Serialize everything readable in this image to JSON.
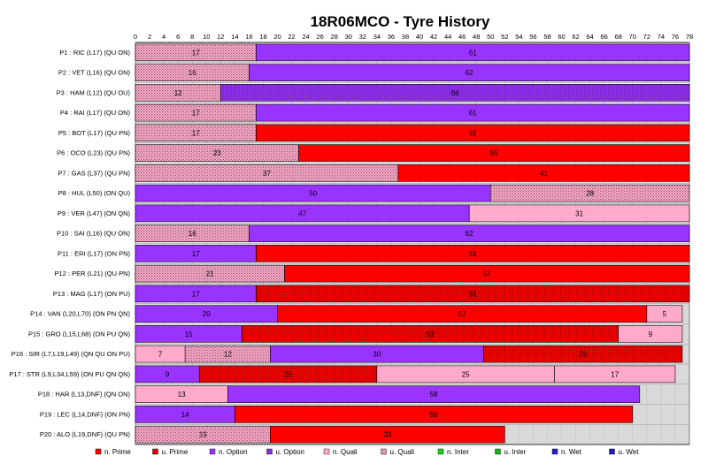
{
  "chart_data": {
    "type": "bar",
    "orientation": "horizontal-stacked",
    "title": "18R06MCO - Tyre History",
    "xlim": [
      0,
      78
    ],
    "x_ticks": [
      0,
      2,
      4,
      6,
      8,
      10,
      12,
      14,
      16,
      18,
      20,
      22,
      24,
      26,
      28,
      30,
      32,
      34,
      36,
      38,
      40,
      42,
      44,
      46,
      48,
      50,
      52,
      54,
      56,
      58,
      60,
      62,
      64,
      66,
      68,
      70,
      72,
      74,
      76,
      78
    ],
    "grid": true,
    "legend_position": "bottom",
    "compounds": [
      {
        "key": "n_prime",
        "label": "n. Prime",
        "color": "#ff0000",
        "dotted": false
      },
      {
        "key": "u_prime",
        "label": "u. Prime",
        "color": "#ff0000",
        "dotted": true
      },
      {
        "key": "n_option",
        "label": "n. Option",
        "color": "#9933ff",
        "dotted": false
      },
      {
        "key": "u_option",
        "label": "u. Option",
        "color": "#9933ff",
        "dotted": true
      },
      {
        "key": "n_quali",
        "label": "n. Quali",
        "color": "#ffaacc",
        "dotted": false
      },
      {
        "key": "u_quali",
        "label": "u. Quali",
        "color": "#ffaacc",
        "dotted": true
      },
      {
        "key": "n_inter",
        "label": "n. Inter",
        "color": "#22cc22",
        "dotted": false
      },
      {
        "key": "u_inter",
        "label": "u. Inter",
        "color": "#22cc22",
        "dotted": true
      },
      {
        "key": "n_wet",
        "label": "n. Wet",
        "color": "#2222cc",
        "dotted": false
      },
      {
        "key": "u_wet",
        "label": "u. Wet",
        "color": "#2222cc",
        "dotted": true
      }
    ],
    "drivers": [
      {
        "label": "P1 : RIC (L17) (QU ON)",
        "stints": [
          {
            "laps": 17,
            "compound": "u_quali"
          },
          {
            "laps": 61,
            "compound": "n_option"
          }
        ]
      },
      {
        "label": "P2 : VET (L16) (QU ON)",
        "stints": [
          {
            "laps": 16,
            "compound": "u_quali"
          },
          {
            "laps": 62,
            "compound": "n_option"
          }
        ]
      },
      {
        "label": "P3 : HAM (L12) (QU OU)",
        "stints": [
          {
            "laps": 12,
            "compound": "u_quali"
          },
          {
            "laps": 66,
            "compound": "u_option"
          }
        ]
      },
      {
        "label": "P4 : RAI (L17) (QU ON)",
        "stints": [
          {
            "laps": 17,
            "compound": "u_quali"
          },
          {
            "laps": 61,
            "compound": "n_option"
          }
        ]
      },
      {
        "label": "P5 : BOT (L17) (QU PN)",
        "stints": [
          {
            "laps": 17,
            "compound": "u_quali"
          },
          {
            "laps": 61,
            "compound": "n_prime"
          }
        ]
      },
      {
        "label": "P6 : OCO (L23) (QU PN)",
        "stints": [
          {
            "laps": 23,
            "compound": "u_quali"
          },
          {
            "laps": 55,
            "compound": "n_prime"
          }
        ]
      },
      {
        "label": "P7 : GAS (L37) (QU PN)",
        "stints": [
          {
            "laps": 37,
            "compound": "u_quali"
          },
          {
            "laps": 41,
            "compound": "n_prime"
          }
        ]
      },
      {
        "label": "P8 : HUL (L50) (ON QU)",
        "stints": [
          {
            "laps": 50,
            "compound": "n_option"
          },
          {
            "laps": 28,
            "compound": "u_quali"
          }
        ]
      },
      {
        "label": "P9 : VER (L47) (ON QN)",
        "stints": [
          {
            "laps": 47,
            "compound": "n_option"
          },
          {
            "laps": 31,
            "compound": "n_quali"
          }
        ]
      },
      {
        "label": "P10 : SAI (L16) (QU ON)",
        "stints": [
          {
            "laps": 16,
            "compound": "u_quali"
          },
          {
            "laps": 62,
            "compound": "n_option"
          }
        ]
      },
      {
        "label": "P11 : ERI (L17) (ON PN)",
        "stints": [
          {
            "laps": 17,
            "compound": "n_option"
          },
          {
            "laps": 61,
            "compound": "n_prime"
          }
        ]
      },
      {
        "label": "P12 : PER (L21) (QU PN)",
        "stints": [
          {
            "laps": 21,
            "compound": "u_quali"
          },
          {
            "laps": 57,
            "compound": "n_prime"
          }
        ]
      },
      {
        "label": "P13 : MAG (L17) (ON PU)",
        "stints": [
          {
            "laps": 17,
            "compound": "n_option"
          },
          {
            "laps": 61,
            "compound": "u_prime"
          }
        ]
      },
      {
        "label": "P14 : VAN (L20,L70) (ON PN QN)",
        "stints": [
          {
            "laps": 20,
            "compound": "n_option"
          },
          {
            "laps": 52,
            "compound": "n_prime"
          },
          {
            "laps": 5,
            "compound": "n_quali"
          }
        ]
      },
      {
        "label": "P15 : GRO (L15,L68) (ON PU QN)",
        "stints": [
          {
            "laps": 15,
            "compound": "n_option"
          },
          {
            "laps": 53,
            "compound": "u_prime"
          },
          {
            "laps": 9,
            "compound": "n_quali"
          }
        ]
      },
      {
        "label": "P16 : SIR (L7,L19,L49) (QN QU ON PU)",
        "stints": [
          {
            "laps": 7,
            "compound": "n_quali"
          },
          {
            "laps": 12,
            "compound": "u_quali"
          },
          {
            "laps": 30,
            "compound": "n_option"
          },
          {
            "laps": 28,
            "compound": "u_prime"
          }
        ]
      },
      {
        "label": "P17 : STR (L9,L34,L59) (ON PU QN QN)",
        "stints": [
          {
            "laps": 9,
            "compound": "n_option"
          },
          {
            "laps": 25,
            "compound": "u_prime"
          },
          {
            "laps": 25,
            "compound": "n_quali"
          },
          {
            "laps": 17,
            "compound": "n_quali"
          }
        ]
      },
      {
        "label": "P18 : HAR (L13,DNF) (QN ON)",
        "stints": [
          {
            "laps": 13,
            "compound": "n_quali"
          },
          {
            "laps": 58,
            "compound": "n_option"
          }
        ]
      },
      {
        "label": "P19 : LEC (L14,DNF) (ON PN)",
        "stints": [
          {
            "laps": 14,
            "compound": "n_option"
          },
          {
            "laps": 56,
            "compound": "n_prime"
          }
        ]
      },
      {
        "label": "P20 : ALO (L19,DNF) (QU PN)",
        "stints": [
          {
            "laps": 19,
            "compound": "u_quali"
          },
          {
            "laps": 33,
            "compound": "n_prime"
          }
        ]
      }
    ]
  }
}
